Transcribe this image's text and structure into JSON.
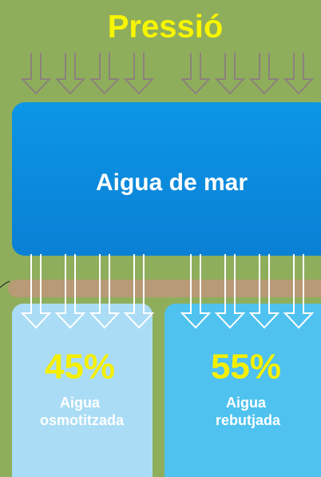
{
  "title": "Pressió",
  "feed": {
    "label": "Aigua de mar"
  },
  "outputs": [
    {
      "percent": "45%",
      "label": "Aigua osmotitzada"
    },
    {
      "percent": "55%",
      "label": "Aigua rebutjada"
    }
  ]
}
